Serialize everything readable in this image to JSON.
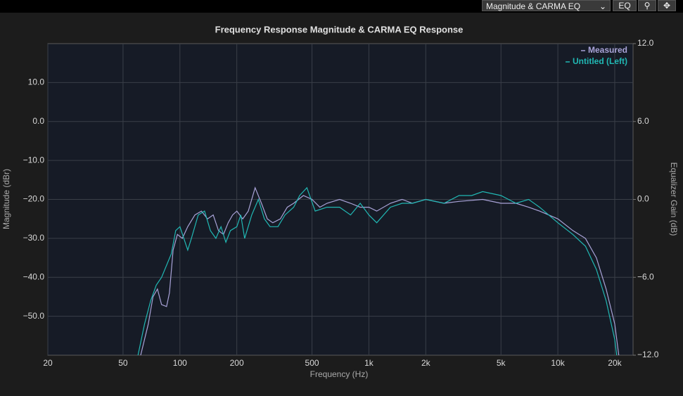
{
  "toolbar": {
    "view_select": "Magnitude & CARMA EQ",
    "eq_button": "EQ"
  },
  "chart_data": {
    "type": "line",
    "title": "Frequency Response Magnitude & CARMA EQ Response",
    "x_label": "Frequency (Hz)",
    "y_label": "Magnitude (dBr)",
    "y2_label": "Equalizer Gain (dB)",
    "log_x": true,
    "grid": true,
    "legend": "top-right",
    "xlim": [
      20,
      25000
    ],
    "xticks": [
      20,
      50,
      100,
      200,
      500,
      {
        "value": 1000,
        "label": "1k"
      },
      {
        "value": 2000,
        "label": "2k"
      },
      {
        "value": 5000,
        "label": "5k"
      },
      {
        "value": 10000,
        "label": "10k"
      },
      {
        "value": 20000,
        "label": "20k"
      }
    ],
    "ylim": [
      -60,
      20
    ],
    "yticks": [
      {
        "value": 10,
        "label": "10.0"
      },
      {
        "value": 0,
        "label": "0.0"
      },
      {
        "value": -10,
        "label": "−10.0"
      },
      {
        "value": -20,
        "label": "−20.0"
      },
      {
        "value": -30,
        "label": "−30.0"
      },
      {
        "value": -40,
        "label": "−40.0"
      },
      {
        "value": -50,
        "label": "−50.0"
      }
    ],
    "y2lim": [
      -12,
      12
    ],
    "y2ticks": [
      {
        "value": 12,
        "label": "12.0"
      },
      {
        "value": 6,
        "label": "6.0"
      },
      {
        "value": 0,
        "label": "0.0"
      },
      {
        "value": -6,
        "label": "−6.0"
      },
      {
        "value": -12,
        "label": "−12.0"
      }
    ],
    "series": [
      {
        "name": "Measured",
        "color": "#a9a3d8",
        "x": [
          62,
          68,
          72,
          76,
          80,
          85,
          88,
          92,
          97,
          103,
          110,
          120,
          130,
          140,
          150,
          160,
          170,
          180,
          190,
          200,
          215,
          230,
          250,
          270,
          290,
          310,
          340,
          370,
          400,
          450,
          500,
          550,
          600,
          700,
          800,
          900,
          1000,
          1100,
          1300,
          1500,
          1700,
          2000,
          2500,
          3000,
          4000,
          5000,
          6000,
          7000,
          8000,
          10000,
          12000,
          14000,
          16000,
          18000,
          20000,
          21000
        ],
        "values": [
          -60,
          -52,
          -45,
          -43,
          -47,
          -47.5,
          -44,
          -33,
          -29,
          -30,
          -27,
          -24,
          -23,
          -25,
          -24,
          -28,
          -29,
          -26,
          -24,
          -23,
          -25,
          -23,
          -17,
          -21,
          -25,
          -26,
          -25,
          -22,
          -21,
          -19,
          -20,
          -22,
          -21,
          -20,
          -21,
          -22,
          -22,
          -23,
          -21,
          -20,
          -21,
          -20,
          -21,
          -20.5,
          -20,
          -21,
          -21,
          -22,
          -23,
          -25,
          -28,
          -30,
          -35,
          -43,
          -52,
          -60
        ]
      },
      {
        "name": "Untitled (Left)",
        "color": "#21b8b4",
        "x": [
          60,
          65,
          70,
          75,
          80,
          90,
          95,
          100,
          110,
          115,
          125,
          135,
          145,
          155,
          165,
          175,
          185,
          200,
          210,
          220,
          240,
          260,
          280,
          300,
          330,
          360,
          400,
          430,
          470,
          520,
          600,
          700,
          800,
          900,
          1000,
          1100,
          1300,
          1500,
          1700,
          2000,
          2500,
          3000,
          3500,
          4000,
          5000,
          6000,
          7000,
          8000,
          10000,
          12000,
          14000,
          16000,
          18000,
          20000,
          20500
        ],
        "values": [
          -60,
          -52,
          -46,
          -42,
          -40,
          -34,
          -28,
          -27,
          -33,
          -30,
          -24,
          -23,
          -28,
          -30,
          -27,
          -31,
          -28,
          -27,
          -24,
          -30,
          -24,
          -20,
          -25,
          -27,
          -27,
          -24,
          -22,
          -19,
          -17,
          -23,
          -22,
          -22,
          -24,
          -21,
          -24,
          -26,
          -22,
          -21,
          -21,
          -20,
          -21,
          -19,
          -19,
          -18,
          -19,
          -21,
          -20,
          -22,
          -26,
          -29,
          -32,
          -38,
          -46,
          -56,
          -60
        ]
      }
    ]
  }
}
